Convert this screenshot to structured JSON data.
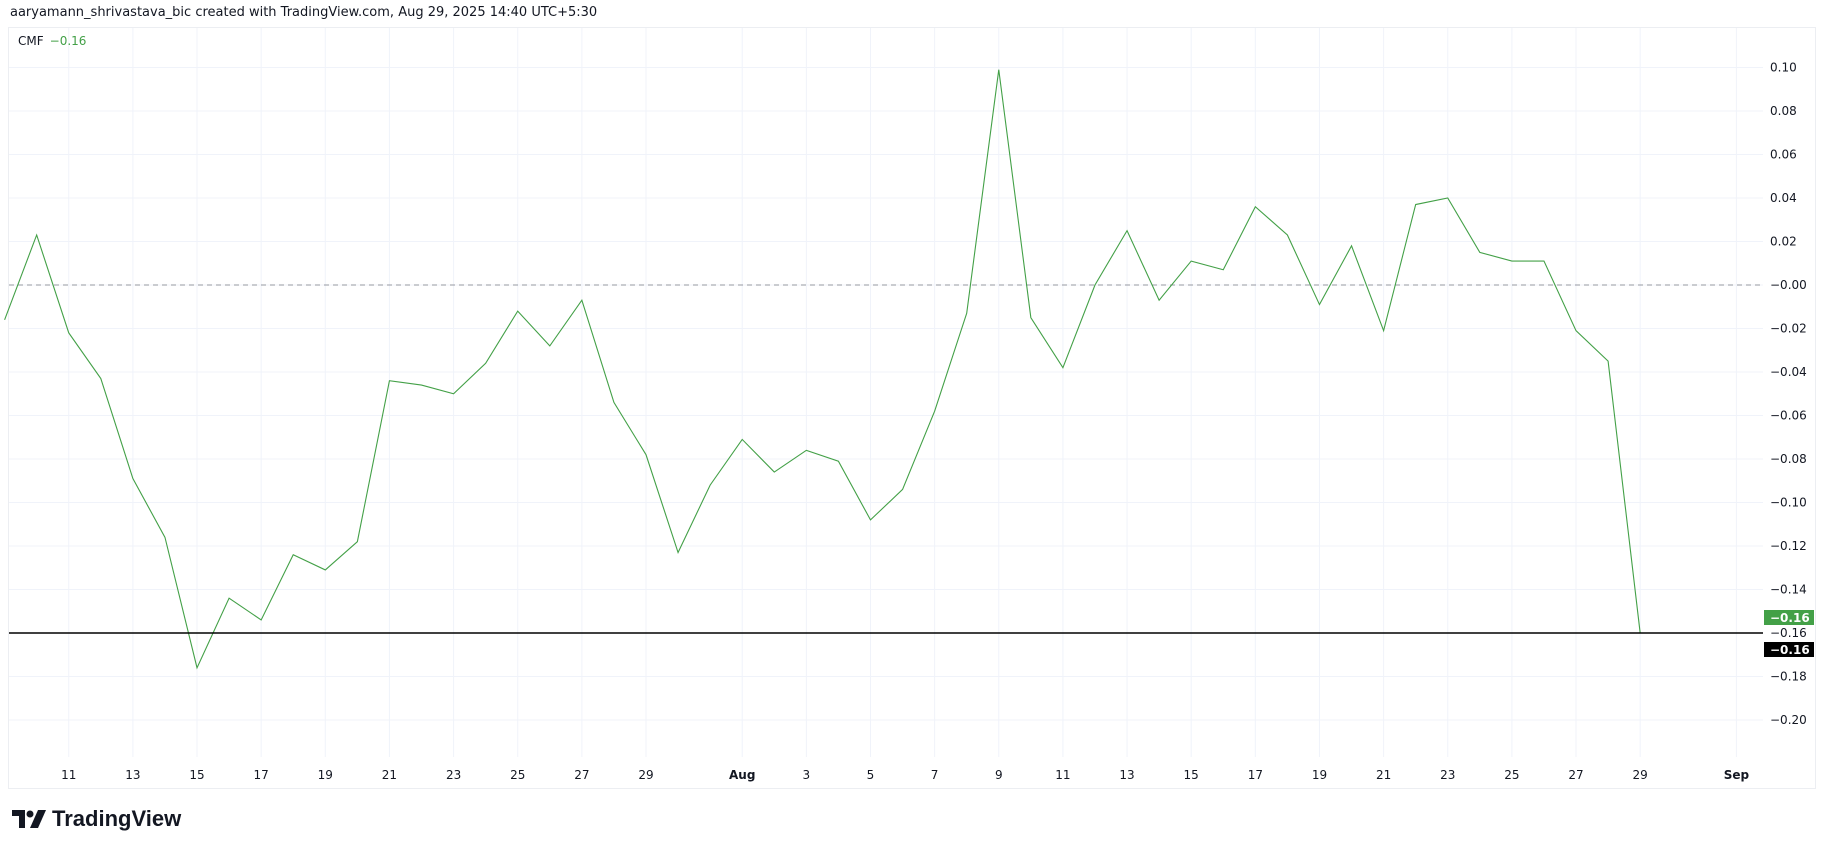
{
  "header": {
    "text": "aaryamann_shrivastava_bic created with TradingView.com, Aug 29, 2025 14:40 UTC+5:30"
  },
  "legend": {
    "name": "CMF",
    "value": "−0.16"
  },
  "logo": {
    "text": "TradingView"
  },
  "chart_data": {
    "type": "line",
    "title": "",
    "series": [
      {
        "name": "CMF",
        "color": "#43a047",
        "x": [
          "Jul 9",
          "Jul 10",
          "Jul 11",
          "Jul 12",
          "Jul 13",
          "Jul 14",
          "Jul 15",
          "Jul 16",
          "Jul 17",
          "Jul 18",
          "Jul 19",
          "Jul 20",
          "Jul 21",
          "Jul 22",
          "Jul 23",
          "Jul 24",
          "Jul 25",
          "Jul 26",
          "Jul 27",
          "Jul 28",
          "Jul 29",
          "Jul 30",
          "Jul 31",
          "Aug 1",
          "Aug 2",
          "Aug 3",
          "Aug 4",
          "Aug 5",
          "Aug 6",
          "Aug 7",
          "Aug 8",
          "Aug 9",
          "Aug 10",
          "Aug 11",
          "Aug 12",
          "Aug 13",
          "Aug 14",
          "Aug 15",
          "Aug 16",
          "Aug 17",
          "Aug 18",
          "Aug 19",
          "Aug 20",
          "Aug 21",
          "Aug 22",
          "Aug 23",
          "Aug 24",
          "Aug 25",
          "Aug 26",
          "Aug 27",
          "Aug 28",
          "Aug 29"
        ],
        "values": [
          -0.016,
          0.023,
          -0.022,
          -0.043,
          -0.089,
          -0.116,
          -0.176,
          -0.144,
          -0.154,
          -0.124,
          -0.131,
          -0.118,
          -0.044,
          -0.046,
          -0.05,
          -0.036,
          -0.012,
          -0.028,
          -0.007,
          -0.054,
          -0.078,
          -0.123,
          -0.092,
          -0.071,
          -0.086,
          -0.076,
          -0.081,
          -0.108,
          -0.094,
          -0.058,
          -0.013,
          0.099,
          -0.015,
          -0.038,
          0.0,
          0.025,
          -0.007,
          0.011,
          0.007,
          0.036,
          0.023,
          -0.009,
          0.018,
          -0.021,
          0.037,
          0.04,
          0.015,
          0.011,
          0.011,
          -0.021,
          -0.035,
          -0.16
        ]
      }
    ],
    "x_ticks": [
      {
        "label": "11",
        "day": 2
      },
      {
        "label": "13",
        "day": 4
      },
      {
        "label": "15",
        "day": 6
      },
      {
        "label": "17",
        "day": 8
      },
      {
        "label": "19",
        "day": 10
      },
      {
        "label": "21",
        "day": 12
      },
      {
        "label": "23",
        "day": 14
      },
      {
        "label": "25",
        "day": 16
      },
      {
        "label": "27",
        "day": 18
      },
      {
        "label": "29",
        "day": 20
      },
      {
        "label": "Aug",
        "day": 23,
        "bold": true
      },
      {
        "label": "3",
        "day": 25
      },
      {
        "label": "5",
        "day": 27
      },
      {
        "label": "7",
        "day": 29
      },
      {
        "label": "9",
        "day": 31
      },
      {
        "label": "11",
        "day": 33
      },
      {
        "label": "13",
        "day": 35
      },
      {
        "label": "15",
        "day": 37
      },
      {
        "label": "17",
        "day": 39
      },
      {
        "label": "19",
        "day": 41
      },
      {
        "label": "21",
        "day": 43
      },
      {
        "label": "23",
        "day": 45
      },
      {
        "label": "25",
        "day": 47
      },
      {
        "label": "27",
        "day": 49
      },
      {
        "label": "29",
        "day": 51
      },
      {
        "label": "Sep",
        "day": 54,
        "bold": true
      }
    ],
    "y_ticks": [
      "0.10",
      "0.08",
      "0.06",
      "0.04",
      "0.02",
      "−0.00",
      "−0.02",
      "−0.04",
      "−0.06",
      "−0.08",
      "−0.10",
      "−0.12",
      "−0.14",
      "−0.16",
      "−0.18",
      "−0.20"
    ],
    "ylim": [
      -0.22,
      0.12
    ],
    "zero_line": {
      "value": 0,
      "style": "dashed",
      "color": "#9598a1"
    },
    "price_line": {
      "value": -0.16,
      "color": "#000000"
    },
    "labels": [
      {
        "text": "−0.16",
        "color": "#43a047"
      },
      {
        "text": "−0.16",
        "color": "#000000"
      }
    ],
    "grid": true
  }
}
